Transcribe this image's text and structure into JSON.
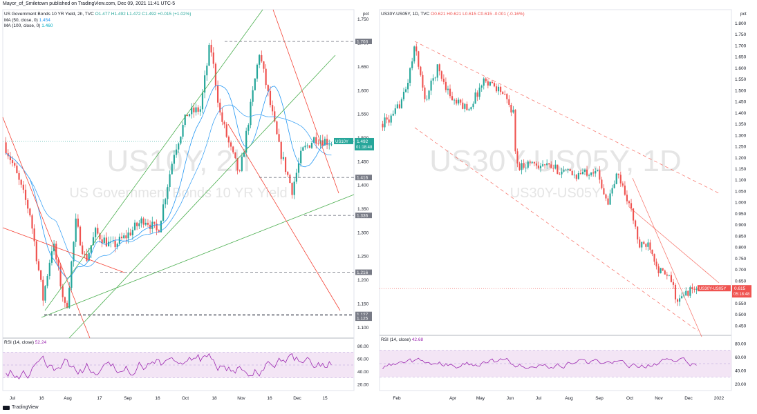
{
  "header": "Mayor_of_Smiletown published on TradingView.com, Dec 09, 2021 11:41 UTC-5",
  "footer": "TradingView",
  "colors": {
    "up": "#26a69a",
    "down": "#ef5350",
    "ma50": "#2196f3",
    "ma100": "#42a5f5",
    "rsi": "#9c27b0",
    "rsi_band": "#f3e5f5",
    "trend_red": "#f44336",
    "trend_green": "#4caf50",
    "dash": "#787b86"
  },
  "chart_data": [
    {
      "type": "candlestick",
      "symbol_line": "US Government Bonds 10 YR Yield, 2h, TVC",
      "ohlc_text": {
        "o": "O1.477",
        "h": "H1.492",
        "l": "L1.472",
        "c": "C1.492",
        "chg": "+0.015 (+1.02%)"
      },
      "indicators": [
        {
          "label": "MA (50, close, 0)",
          "value": "1.454"
        },
        {
          "label": "MA (100, close, 0)",
          "value": "1.460"
        }
      ],
      "watermark_symbol": "US10Y, 2h",
      "watermark_name": "US Government Bonds 10 YR Yield",
      "unit": "pct",
      "ylim": [
        1.08,
        1.77
      ],
      "yticks": [
        "1.100",
        "1.150",
        "1.200",
        "1.250",
        "1.300",
        "1.350",
        "1.400",
        "1.450",
        "1.500",
        "1.550",
        "1.600",
        "1.650",
        "1.700",
        "1.750"
      ],
      "xticks": [
        "Jul",
        "16",
        "Aug",
        "17",
        "Sep",
        "16",
        "Oct",
        "18",
        "Nov",
        "16",
        "Dec",
        "15"
      ],
      "price_label": {
        "name": "US10Y",
        "value": "1.492",
        "countdown": "01:18:48"
      },
      "levels": [
        {
          "value": 1.703,
          "label": "1.703"
        },
        {
          "value": 1.416,
          "label": "1.416"
        },
        {
          "value": 1.336,
          "label": "1.336"
        },
        {
          "value": 1.216,
          "label": "1.216"
        },
        {
          "value": 1.127,
          "label": "1.127"
        },
        {
          "value": 1.125,
          "label": "1.125"
        }
      ],
      "path_knots": [
        [
          0,
          1.49
        ],
        [
          0.03,
          1.44
        ],
        [
          0.08,
          1.34
        ],
        [
          0.12,
          1.16
        ],
        [
          0.15,
          1.28
        ],
        [
          0.19,
          1.13
        ],
        [
          0.22,
          1.32
        ],
        [
          0.25,
          1.24
        ],
        [
          0.28,
          1.3
        ],
        [
          0.33,
          1.27
        ],
        [
          0.37,
          1.29
        ],
        [
          0.43,
          1.33
        ],
        [
          0.47,
          1.3
        ],
        [
          0.52,
          1.47
        ],
        [
          0.56,
          1.55
        ],
        [
          0.6,
          1.56
        ],
        [
          0.63,
          1.7
        ],
        [
          0.66,
          1.55
        ],
        [
          0.69,
          1.48
        ],
        [
          0.72,
          1.42
        ],
        [
          0.75,
          1.55
        ],
        [
          0.78,
          1.68
        ],
        [
          0.81,
          1.58
        ],
        [
          0.84,
          1.48
        ],
        [
          0.88,
          1.39
        ],
        [
          0.91,
          1.47
        ],
        [
          0.95,
          1.5
        ],
        [
          1.0,
          1.49
        ]
      ],
      "rsi": {
        "label": "RSI (14, close)",
        "value": "52.24",
        "yticks": [
          "20.00",
          "40.00",
          "60.00",
          "80.00"
        ]
      }
    },
    {
      "type": "candlestick",
      "symbol_line": "US30Y-US05Y, 1D, TVC",
      "ohlc_text": {
        "o": "O0.621",
        "h": "H0.621",
        "l": "L0.615",
        "c": "C0.615",
        "chg": "-0.001 (-0.16%)"
      },
      "watermark_symbol": "US30Y-US05Y, 1D",
      "watermark_name": "US30Y-US05Y",
      "unit": "pct",
      "ylim": [
        0.4,
        1.86
      ],
      "yticks": [
        "0.450",
        "0.500",
        "0.550",
        "0.600",
        "0.650",
        "0.700",
        "0.750",
        "0.800",
        "0.850",
        "0.900",
        "0.950",
        "1.000",
        "1.050",
        "1.100",
        "1.150",
        "1.200",
        "1.250",
        "1.300",
        "1.350",
        "1.400",
        "1.450",
        "1.500",
        "1.550",
        "1.600",
        "1.650",
        "1.700",
        "1.750",
        "1.800"
      ],
      "xticks": [
        "Feb",
        "Apr",
        "May",
        "Jun",
        "Jul",
        "Aug",
        "Sep",
        "Oct",
        "Nov",
        "Dec",
        "2022"
      ],
      "price_label": {
        "name": "US30Y-US05Y",
        "value": "0.615",
        "countdown": "05:18:48"
      },
      "path_knots": [
        [
          0,
          1.35
        ],
        [
          0.04,
          1.38
        ],
        [
          0.08,
          1.5
        ],
        [
          0.11,
          1.7
        ],
        [
          0.14,
          1.45
        ],
        [
          0.18,
          1.6
        ],
        [
          0.23,
          1.45
        ],
        [
          0.28,
          1.42
        ],
        [
          0.33,
          1.55
        ],
        [
          0.38,
          1.5
        ],
        [
          0.42,
          1.4
        ],
        [
          0.43,
          1.16
        ],
        [
          0.48,
          1.18
        ],
        [
          0.55,
          1.15
        ],
        [
          0.62,
          1.12
        ],
        [
          0.68,
          1.15
        ],
        [
          0.72,
          1.0
        ],
        [
          0.75,
          1.13
        ],
        [
          0.79,
          0.98
        ],
        [
          0.82,
          0.8
        ],
        [
          0.85,
          0.82
        ],
        [
          0.88,
          0.7
        ],
        [
          0.92,
          0.65
        ],
        [
          0.94,
          0.55
        ],
        [
          0.97,
          0.6
        ],
        [
          1.0,
          0.615
        ]
      ],
      "rsi": {
        "label": "RSI (14, close)",
        "value": "42.68",
        "yticks": [
          "20.00",
          "40.00",
          "60.00",
          "80.00"
        ]
      }
    }
  ]
}
